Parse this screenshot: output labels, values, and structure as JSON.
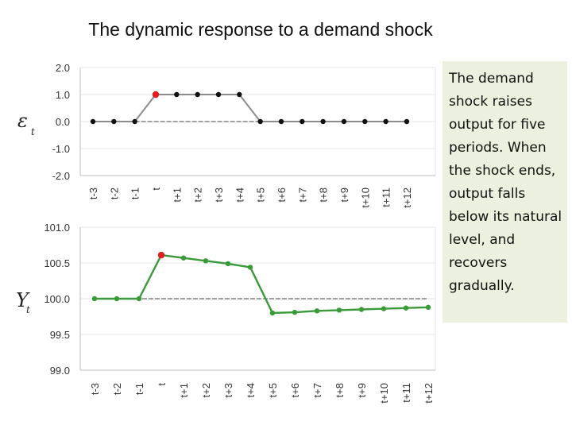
{
  "title": "The dynamic response to a demand shock",
  "note": "The demand shock raises output for five periods.  When the shock ends, output falls below its natural level, and recovers gradually.",
  "chart_data": [
    {
      "type": "line",
      "name": "shock",
      "ylabel_symbol": "ε",
      "ylabel_sub": "t",
      "x": [
        "t-3",
        "t-2",
        "t-1",
        "t",
        "t+1",
        "t+2",
        "t+3",
        "t+4",
        "t+5",
        "t+6",
        "t+7",
        "t+8",
        "t+9",
        "t+10",
        "t+11",
        "t+12"
      ],
      "values": [
        0,
        0,
        0,
        1,
        1,
        1,
        1,
        1,
        0,
        0,
        0,
        0,
        0,
        0,
        0,
        0
      ],
      "highlight_index": 3,
      "yticks": [
        "2.0",
        "1.0",
        "0.0",
        "-1.0",
        "-2.0"
      ],
      "ylim": [
        -2,
        2
      ],
      "baseline": 0,
      "line_color": "#8c8c8c",
      "highlight_color": "#e02020"
    },
    {
      "type": "line",
      "name": "output",
      "ylabel_symbol": "Y",
      "ylabel_sub": "t",
      "x": [
        "t-3",
        "t-2",
        "t-1",
        "t",
        "t+1",
        "t+2",
        "t+3",
        "t+4",
        "t+5",
        "t+6",
        "t+7",
        "t+8",
        "t+9",
        "t+10",
        "t+11",
        "t+12"
      ],
      "values": [
        100.0,
        100.0,
        100.0,
        100.61,
        100.57,
        100.53,
        100.49,
        100.44,
        99.8,
        99.81,
        99.83,
        99.84,
        99.85,
        99.86,
        99.87,
        99.88
      ],
      "highlight_index": 3,
      "yticks": [
        "101.0",
        "100.5",
        "100.0",
        "99.5",
        "99.0"
      ],
      "ylim": [
        99,
        101
      ],
      "baseline": 100,
      "line_color": "#3a9a3a",
      "highlight_color": "#e02020"
    }
  ]
}
